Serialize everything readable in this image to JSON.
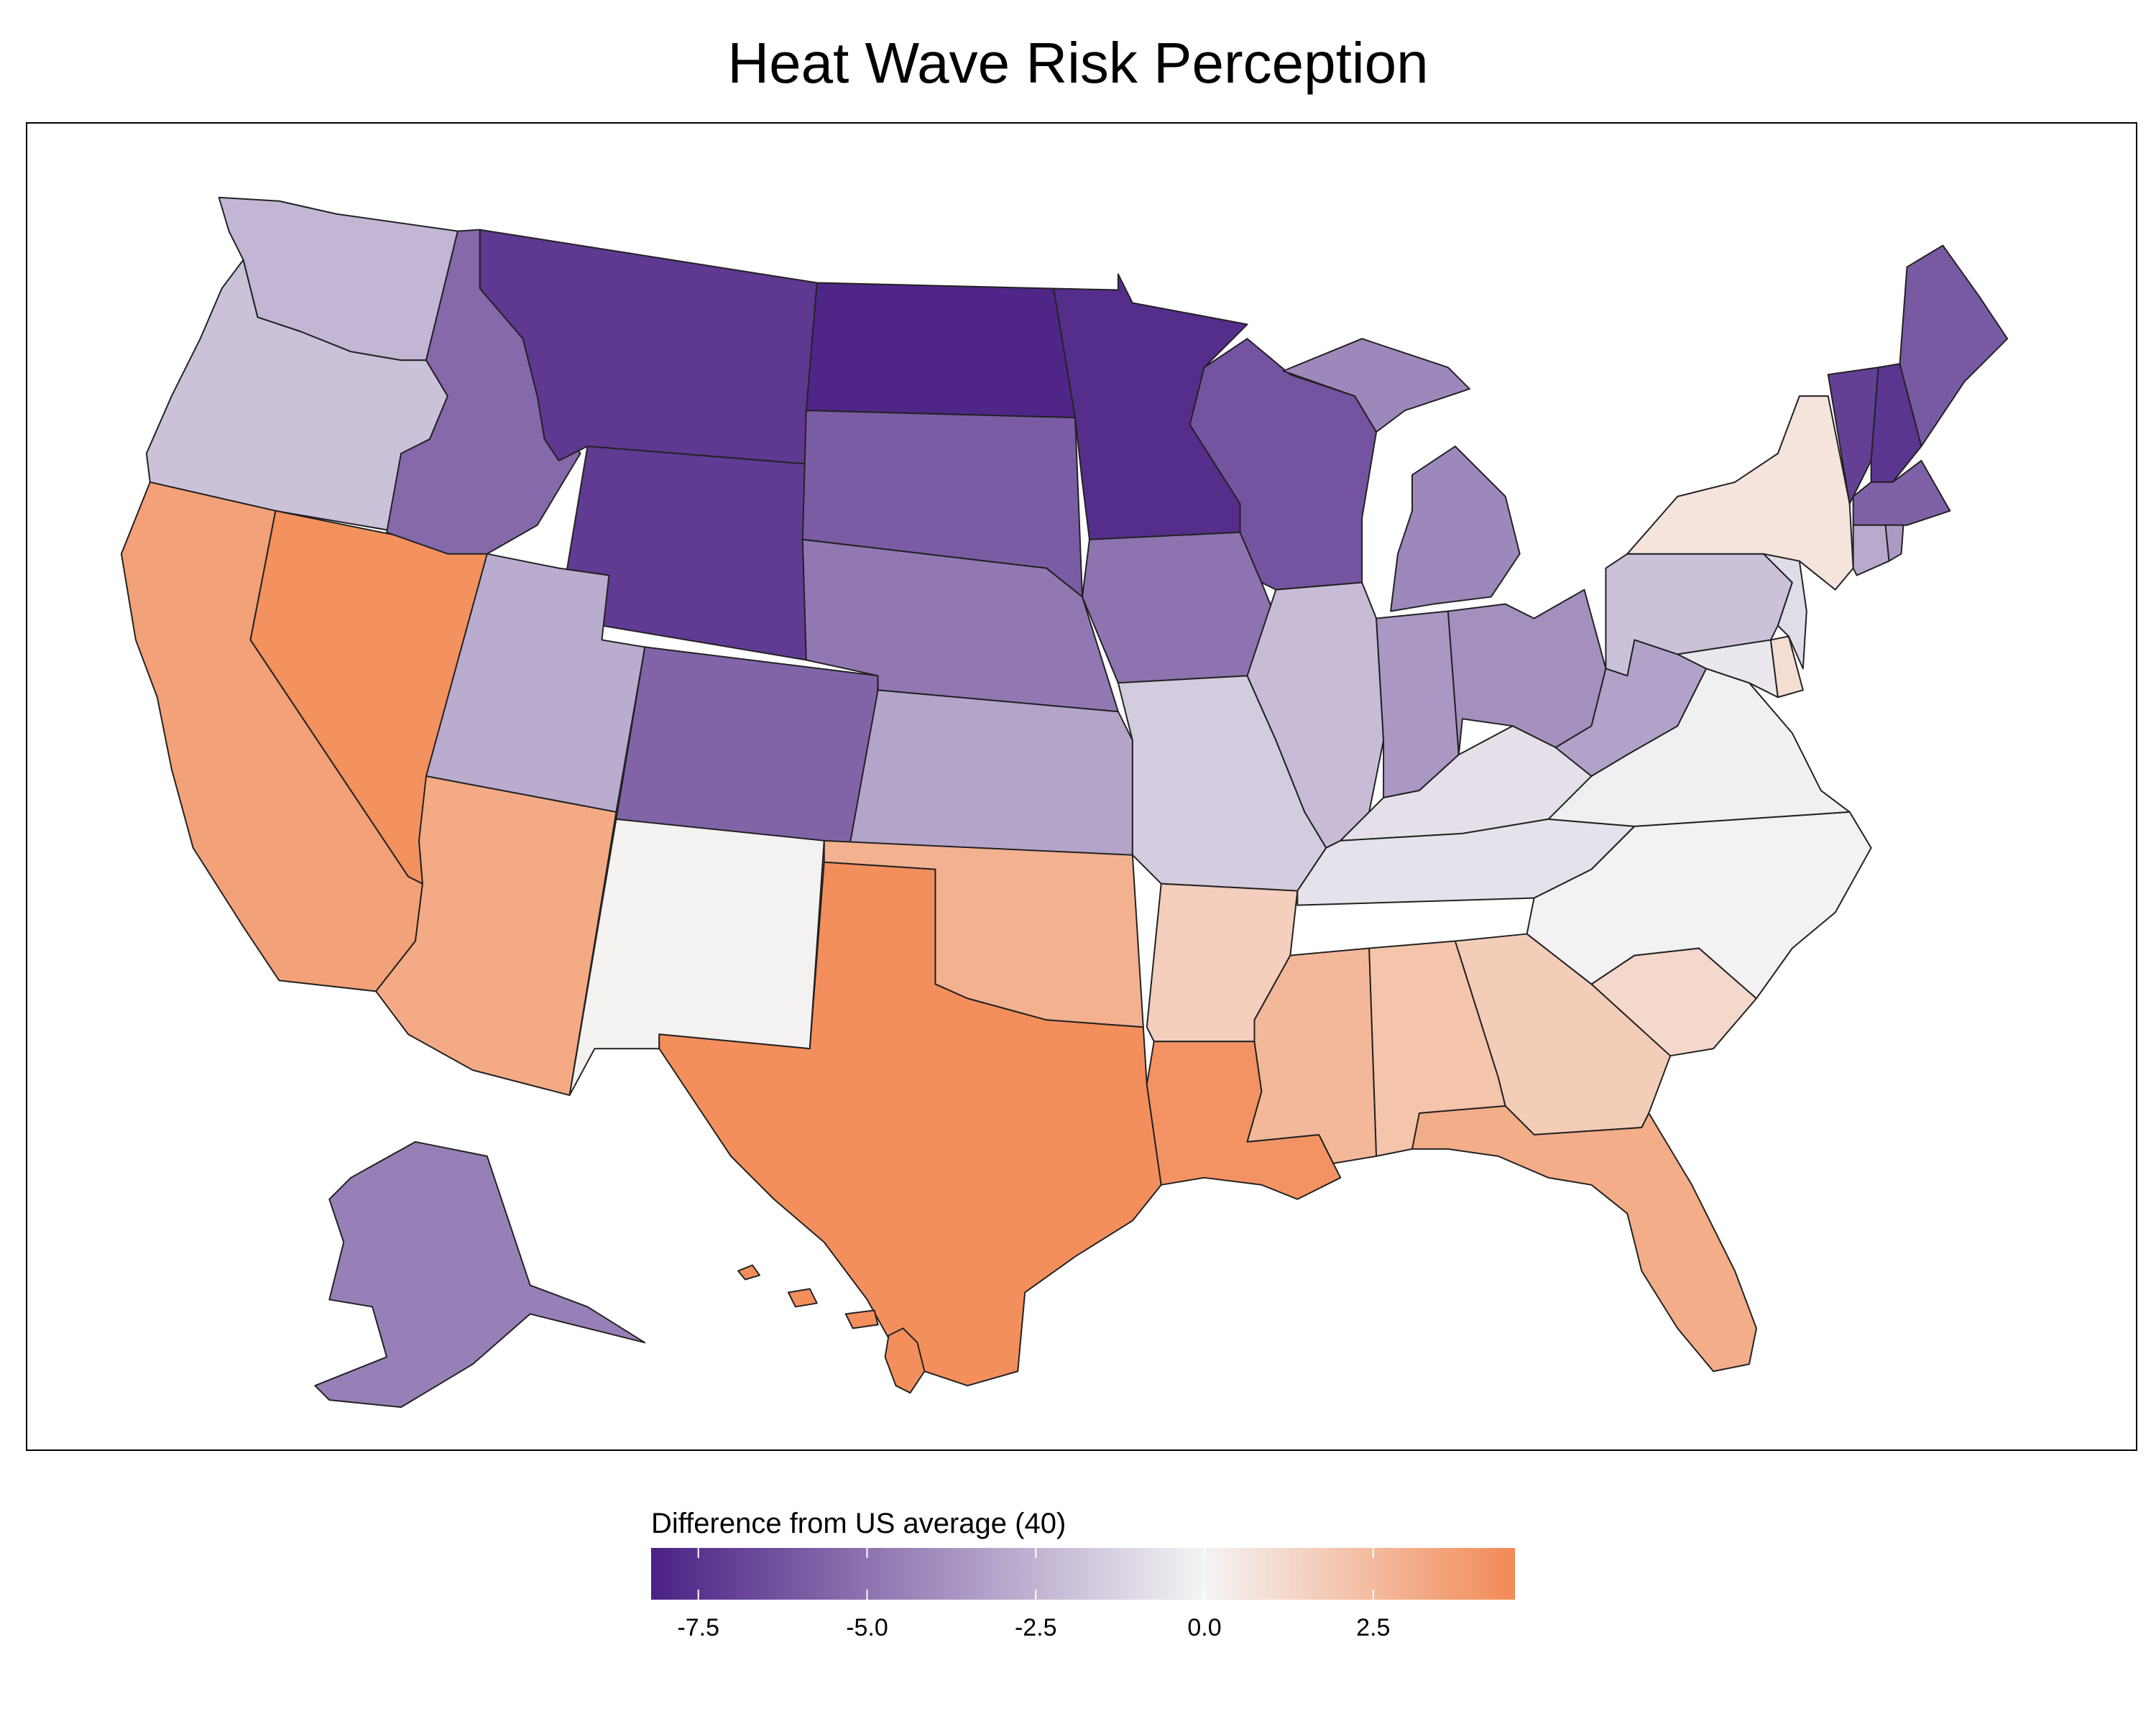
{
  "title": "Heat Wave Risk Perception",
  "legend": {
    "title": "Difference from US average (40)",
    "min": -8.2,
    "max": 4.6,
    "ticks": [
      -7.5,
      -5.0,
      -2.5,
      0.0,
      2.5
    ],
    "tick_labels": [
      "-7.5",
      "-5.0",
      "-2.5",
      "0.0",
      "2.5"
    ],
    "colors": {
      "low": "#4b2185",
      "mid": "#f4f4f4",
      "high": "#f38a55"
    }
  },
  "states": [
    {
      "name": "WA",
      "value": -2.4
    },
    {
      "name": "OR",
      "value": -2.0
    },
    {
      "name": "CA",
      "value": 3.6
    },
    {
      "name": "NV",
      "value": 4.3
    },
    {
      "name": "ID",
      "value": -5.4
    },
    {
      "name": "MT",
      "value": -7.3
    },
    {
      "name": "WY",
      "value": -7.2
    },
    {
      "name": "UT",
      "value": -2.8
    },
    {
      "name": "AZ",
      "value": 3.2
    },
    {
      "name": "CO",
      "value": -5.6
    },
    {
      "name": "NM",
      "value": 0.1
    },
    {
      "name": "ND",
      "value": -8.0
    },
    {
      "name": "SD",
      "value": -5.9
    },
    {
      "name": "NE",
      "value": -4.8
    },
    {
      "name": "KS",
      "value": -3.1
    },
    {
      "name": "OK",
      "value": 2.9
    },
    {
      "name": "TX",
      "value": 4.4
    },
    {
      "name": "MN",
      "value": -7.7
    },
    {
      "name": "IA",
      "value": -5.0
    },
    {
      "name": "MO",
      "value": -1.6
    },
    {
      "name": "AR",
      "value": 1.6
    },
    {
      "name": "LA",
      "value": 4.2
    },
    {
      "name": "WI",
      "value": -6.2
    },
    {
      "name": "IL",
      "value": -2.2
    },
    {
      "name": "MI",
      "value": -4.2
    },
    {
      "name": "IN",
      "value": -3.6
    },
    {
      "name": "OH",
      "value": -3.9
    },
    {
      "name": "KY",
      "value": -0.8
    },
    {
      "name": "TN",
      "value": -0.7
    },
    {
      "name": "MS",
      "value": 2.6
    },
    {
      "name": "AL",
      "value": 2.1
    },
    {
      "name": "GA",
      "value": 1.7
    },
    {
      "name": "FL",
      "value": 3.1
    },
    {
      "name": "SC",
      "value": 1.2
    },
    {
      "name": "NC",
      "value": -0.1
    },
    {
      "name": "VA",
      "value": -0.2
    },
    {
      "name": "WV",
      "value": -3.2
    },
    {
      "name": "PA",
      "value": -2.0
    },
    {
      "name": "NY",
      "value": 0.7
    },
    {
      "name": "VT",
      "value": -7.0
    },
    {
      "name": "NH",
      "value": -7.4
    },
    {
      "name": "ME",
      "value": -6.0
    },
    {
      "name": "MA",
      "value": -5.7
    },
    {
      "name": "CT",
      "value": -2.9
    },
    {
      "name": "RI",
      "value": -3.5
    },
    {
      "name": "NJ",
      "value": -0.9
    },
    {
      "name": "DE",
      "value": 1.0
    },
    {
      "name": "MD",
      "value": -0.5
    },
    {
      "name": "AK",
      "value": -4.5
    },
    {
      "name": "HI",
      "value": 4.4
    }
  ]
}
